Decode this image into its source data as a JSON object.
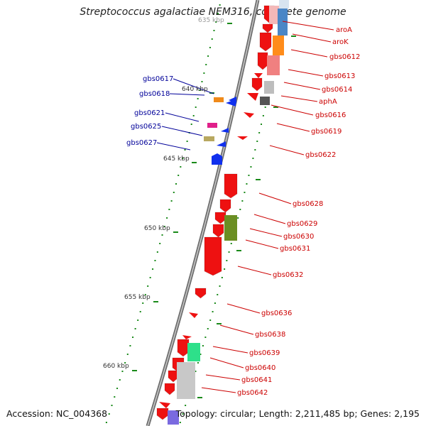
{
  "title": "Streptococcus agalactiae NEM316, complete genome",
  "footer": {
    "accession": "Accession: NC_004368",
    "topology": "Topology: circular; Length: 2,211,485 bp; Genes: 2,195"
  },
  "colors": {
    "red_gene": "#ee1111",
    "blue_gene": "#1030ee",
    "label_red": "#cc0000",
    "label_blue": "#000099",
    "tick_green": "#1a8a1a",
    "backbone": "#8a8a8a"
  },
  "scale_labels": [
    {
      "text": "635 kbp"
    },
    {
      "text": "640 kbp"
    },
    {
      "text": "645 kbp"
    },
    {
      "text": "650 kbp"
    },
    {
      "text": "655 kbp"
    },
    {
      "text": "660 kbp"
    }
  ],
  "labels_right": [
    "aroA",
    "aroK",
    "gbs0612",
    "gbs0613",
    "gbs0614",
    "aphA",
    "gbs0616",
    "gbs0619",
    "gbs0622",
    "gbs0628",
    "gbs0629",
    "gbs0630",
    "gbs0631",
    "gbs0632",
    "gbs0636",
    "gbs0638",
    "gbs0639",
    "gbs0640",
    "gbs0641",
    "gbs0642"
  ],
  "labels_left": [
    "gbs0617",
    "gbs0618",
    "gbs0621",
    "gbs0625",
    "gbs0627"
  ]
}
